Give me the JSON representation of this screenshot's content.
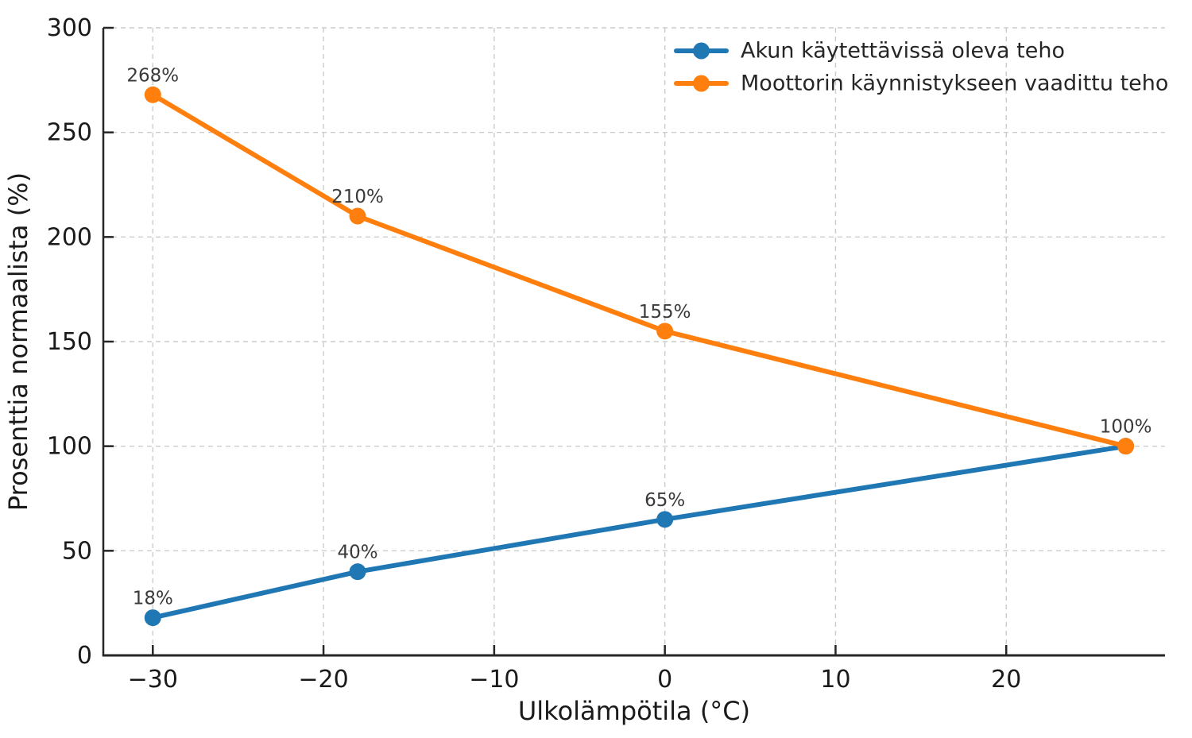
{
  "chart_data": {
    "type": "line",
    "title": "",
    "xlabel": "Ulkolämpötila (°C)",
    "ylabel": "Prosenttia normaalista (%)",
    "x": [
      -30,
      -18,
      0,
      27
    ],
    "series": [
      {
        "name": "Akun käytettävissä oleva teho",
        "color": "#1f77b4",
        "values": [
          18,
          40,
          65,
          100
        ]
      },
      {
        "name": "Moottorin käynnistykseen vaadittu teho",
        "color": "#ff7f0e",
        "values": [
          268,
          210,
          155,
          100
        ]
      }
    ],
    "annotations": [
      {
        "x": -30,
        "y": 268,
        "text": "268%"
      },
      {
        "x": -18,
        "y": 210,
        "text": "210%"
      },
      {
        "x": 0,
        "y": 155,
        "text": "155%"
      },
      {
        "x": 27,
        "y": 100,
        "text": "100%"
      },
      {
        "x": 0,
        "y": 65,
        "text": "65%"
      },
      {
        "x": -18,
        "y": 40,
        "text": "40%"
      },
      {
        "x": -30,
        "y": 18,
        "text": "18%"
      }
    ],
    "xticks": {
      "values": [
        -30,
        -20,
        -10,
        0,
        10,
        20
      ],
      "labels": [
        "−30",
        "−20",
        "−10",
        "0",
        "10",
        "20"
      ]
    },
    "yticks": {
      "values": [
        0,
        50,
        100,
        150,
        200,
        250,
        300
      ],
      "labels": [
        "0",
        "50",
        "100",
        "150",
        "200",
        "250",
        "300"
      ]
    },
    "xlim": [
      -32.9,
      29.3
    ],
    "ylim": [
      0,
      300
    ],
    "grid": {
      "show": true,
      "style": "dashed",
      "color": "#cccccc"
    },
    "legend": {
      "position": "upper right",
      "frame": false
    },
    "colors": {
      "spine": "#262626",
      "tick_text": "#1a1a1a",
      "annotation_text": "#3a3a3a",
      "background": "#ffffff"
    }
  }
}
